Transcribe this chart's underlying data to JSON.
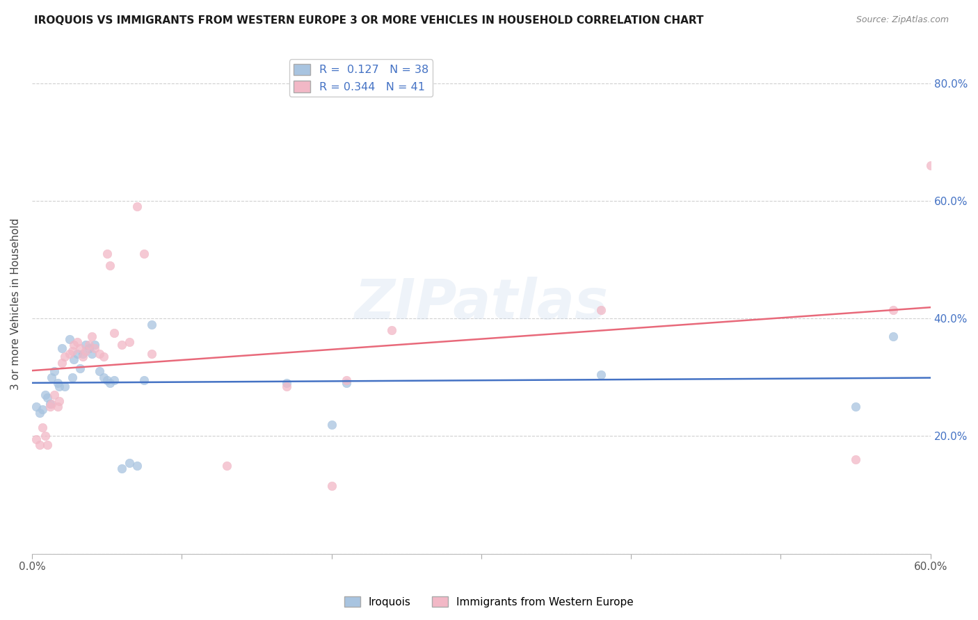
{
  "title": "IROQUOIS VS IMMIGRANTS FROM WESTERN EUROPE 3 OR MORE VEHICLES IN HOUSEHOLD CORRELATION CHART",
  "source": "Source: ZipAtlas.com",
  "ylabel": "3 or more Vehicles in Household",
  "xlim": [
    0,
    0.6
  ],
  "ylim": [
    0,
    0.85
  ],
  "yticks": [
    0.0,
    0.2,
    0.4,
    0.6,
    0.8
  ],
  "ytick_labels": [
    "",
    "20.0%",
    "40.0%",
    "60.0%",
    "80.0%"
  ],
  "xticks": [
    0.0,
    0.1,
    0.2,
    0.3,
    0.4,
    0.5,
    0.6
  ],
  "xtick_labels": [
    "0.0%",
    "",
    "",
    "",
    "",
    "",
    "60.0%"
  ],
  "R_blue": 0.127,
  "N_blue": 38,
  "R_pink": 0.344,
  "N_pink": 41,
  "blue_color": "#a8c4e0",
  "pink_color": "#f2b8c6",
  "blue_line_color": "#4472c4",
  "pink_line_color": "#e8697a",
  "watermark": "ZIPatlas",
  "background_color": "#ffffff",
  "grid_color": "#d0d0d0",
  "iroquois_x": [
    0.003,
    0.005,
    0.007,
    0.009,
    0.01,
    0.012,
    0.013,
    0.015,
    0.017,
    0.018,
    0.02,
    0.022,
    0.025,
    0.027,
    0.028,
    0.03,
    0.032,
    0.034,
    0.036,
    0.038,
    0.04,
    0.042,
    0.045,
    0.048,
    0.05,
    0.052,
    0.055,
    0.06,
    0.065,
    0.07,
    0.075,
    0.08,
    0.17,
    0.2,
    0.21,
    0.38,
    0.55,
    0.575
  ],
  "iroquois_y": [
    0.25,
    0.24,
    0.245,
    0.27,
    0.265,
    0.255,
    0.3,
    0.31,
    0.29,
    0.285,
    0.35,
    0.285,
    0.365,
    0.3,
    0.33,
    0.34,
    0.315,
    0.34,
    0.355,
    0.35,
    0.34,
    0.355,
    0.31,
    0.3,
    0.295,
    0.29,
    0.295,
    0.145,
    0.155,
    0.15,
    0.295,
    0.39,
    0.29,
    0.22,
    0.29,
    0.305,
    0.25,
    0.37
  ],
  "western_x": [
    0.003,
    0.005,
    0.007,
    0.009,
    0.01,
    0.012,
    0.013,
    0.015,
    0.017,
    0.018,
    0.02,
    0.022,
    0.025,
    0.027,
    0.028,
    0.03,
    0.032,
    0.034,
    0.036,
    0.038,
    0.04,
    0.042,
    0.045,
    0.048,
    0.05,
    0.052,
    0.055,
    0.06,
    0.065,
    0.07,
    0.075,
    0.08,
    0.17,
    0.2,
    0.21,
    0.38,
    0.55,
    0.575,
    0.6,
    0.24,
    0.13
  ],
  "western_y": [
    0.195,
    0.185,
    0.215,
    0.2,
    0.185,
    0.25,
    0.255,
    0.27,
    0.25,
    0.26,
    0.325,
    0.335,
    0.34,
    0.345,
    0.355,
    0.36,
    0.35,
    0.335,
    0.345,
    0.355,
    0.37,
    0.35,
    0.34,
    0.335,
    0.51,
    0.49,
    0.375,
    0.355,
    0.36,
    0.59,
    0.51,
    0.34,
    0.285,
    0.115,
    0.295,
    0.415,
    0.16,
    0.415,
    0.66,
    0.38,
    0.15
  ]
}
